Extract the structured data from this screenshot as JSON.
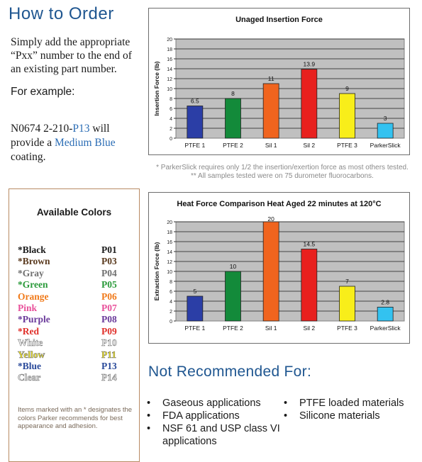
{
  "how_to_order": {
    "title": "How to Order",
    "intro": "Simply add the appropriate “Pxx” number to the end of an existing part number.",
    "example_label": "For example:",
    "example_prefix": "N0674 2-210-",
    "example_code": "P13",
    "example_mid": " will provide a ",
    "example_color": "Medium Blue",
    "example_suffix": " coating."
  },
  "available_colors": {
    "title": "Available Colors",
    "items": [
      {
        "name": "*Black",
        "code": "P01",
        "color": "#1a1a1a",
        "outlined": false
      },
      {
        "name": "*Brown",
        "code": "P03",
        "color": "#5a3a1e",
        "outlined": false
      },
      {
        "name": "*Gray",
        "code": "P04",
        "color": "#707070",
        "outlined": false
      },
      {
        "name": "*Green",
        "code": "P05",
        "color": "#2a9a3a",
        "outlined": false
      },
      {
        "name": "Orange",
        "code": "P06",
        "color": "#f07a1a",
        "outlined": false
      },
      {
        "name": "Pink",
        "code": "P07",
        "color": "#e8509a",
        "outlined": false
      },
      {
        "name": "*Purple",
        "code": "P08",
        "color": "#6a3a9a",
        "outlined": false
      },
      {
        "name": "*Red",
        "code": "P09",
        "color": "#e0302a",
        "outlined": false
      },
      {
        "name": "White",
        "code": "P10",
        "color": "#ffffff",
        "outlined": true
      },
      {
        "name": "Yellow",
        "code": "P11",
        "color": "#f4e81a",
        "outlined": true
      },
      {
        "name": "*Blue",
        "code": "P13",
        "color": "#2a4a9a",
        "outlined": false
      },
      {
        "name": "Clear",
        "code": "P14",
        "color": "#e8e8e8",
        "outlined": true
      }
    ],
    "note": "Items marked with an * designates the colors Parker recommends for best appearance and adhesion."
  },
  "footnote": {
    "line1": "*  ParkerSlick requires only 1/2 the insertion/exertion force as most others tested.",
    "line2": "** All samples tested were on 75 durometer fluorocarbons."
  },
  "not_recommended": {
    "title": "Not Recommended For:",
    "left": [
      "Gaseous applications",
      "FDA applications",
      "NSF 61 and USP class VI applications"
    ],
    "right": [
      "PTFE loaded materials",
      "Silicone materials"
    ]
  },
  "chart_data": [
    {
      "type": "bar",
      "title": "Unaged Insertion Force",
      "ylabel": "Insertion Force (lb)",
      "xlabel": "",
      "categories": [
        "PTFE 1",
        "PTFE 2",
        "Sil 1",
        "Sil 2",
        "PTFE 3",
        "ParkerSlick"
      ],
      "values": [
        6.5,
        8,
        11,
        13.9,
        9,
        3
      ],
      "data_labels": [
        "6.5",
        "8",
        "11",
        "13.9",
        "9",
        "3"
      ],
      "colors": [
        "#2b3ea6",
        "#138a3a",
        "#f0641e",
        "#e8201e",
        "#f8ee1a",
        "#33c2f0"
      ],
      "ylim": [
        0,
        20
      ],
      "yticks": [
        0,
        2,
        4,
        6,
        8,
        10,
        12,
        14,
        16,
        18,
        20
      ],
      "grid": true,
      "plot_bg": "#c0c0c0"
    },
    {
      "type": "bar",
      "title": "Heat Force Comparison Heat Aged 22 minutes at 120°C",
      "ylabel": "Extraction Force (lb)",
      "xlabel": "",
      "categories": [
        "PTFE 1",
        "PTFE 2",
        "Sil 1",
        "Sil 2",
        "PTFE 3",
        "ParkerSlick"
      ],
      "values": [
        5,
        10,
        20,
        14.5,
        7,
        2.8
      ],
      "data_labels": [
        "5",
        "10",
        "20",
        "14.5",
        "7",
        "2.8"
      ],
      "colors": [
        "#2b3ea6",
        "#138a3a",
        "#f0641e",
        "#e8201e",
        "#f8ee1a",
        "#33c2f0"
      ],
      "ylim": [
        0,
        20
      ],
      "yticks": [
        0,
        2,
        4,
        6,
        8,
        10,
        12,
        14,
        16,
        18,
        20
      ],
      "grid": true,
      "plot_bg": "#c0c0c0"
    }
  ]
}
